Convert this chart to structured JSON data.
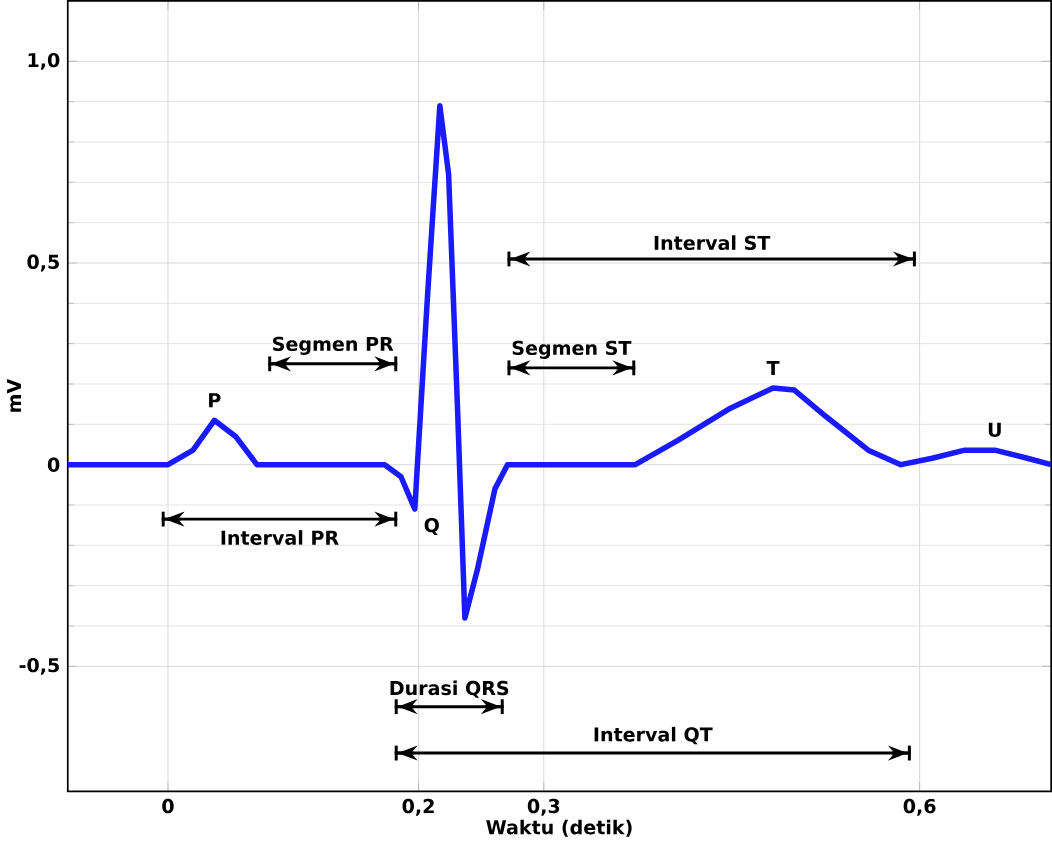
{
  "chart_data": {
    "type": "line",
    "xlabel": "Waktu (detik)",
    "ylabel": "mV",
    "xlim": [
      -0.08,
      0.705
    ],
    "ylim": [
      -0.81,
      1.15
    ],
    "xticks": [
      {
        "value": 0,
        "label": "0"
      },
      {
        "value": 0.2,
        "label": "0,2"
      },
      {
        "value": 0.3,
        "label": "0,3"
      },
      {
        "value": 0.6,
        "label": "0,6"
      }
    ],
    "yticks": [
      {
        "value": -0.5,
        "label": "-0,5"
      },
      {
        "value": 0,
        "label": "0"
      },
      {
        "value": 0.5,
        "label": "0,5"
      },
      {
        "value": 1,
        "label": "1,0"
      }
    ],
    "grid": true,
    "marker": "none",
    "line_style": "solid",
    "series": [
      {
        "color": "#1a1aff",
        "x": [
          -0.08,
          0,
          0.02,
          0.037,
          0.054,
          0.071,
          0.173,
          0.186,
          0.197,
          0.207,
          0.217,
          0.224,
          0.231,
          0.237,
          0.247,
          0.261,
          0.271,
          0.373,
          0.407,
          0.449,
          0.483,
          0.5,
          0.525,
          0.559,
          0.585,
          0.61,
          0.636,
          0.66,
          0.686,
          0.705
        ],
        "values": [
          0,
          0,
          0.036,
          0.11,
          0.07,
          0,
          0,
          -0.03,
          -0.11,
          0.41,
          0.89,
          0.72,
          0.15,
          -0.38,
          -0.26,
          -0.06,
          0,
          0,
          0.06,
          0.14,
          0.19,
          0.185,
          0.12,
          0.036,
          0,
          0.016,
          0.036,
          0.036,
          0.016,
          0
        ]
      },
      {
        "name": "Interval ST",
        "color": "#000000",
        "x": [
          0.271,
          0.597
        ],
        "values": [
          0.51,
          0.51
        ]
      },
      {
        "name": "Segmen PR",
        "color": "#000000",
        "x": [
          0.08,
          0.183
        ],
        "values": [
          0.25,
          0.25
        ]
      },
      {
        "name": "Segmen ST",
        "color": "#000000",
        "x": [
          0.271,
          0.373
        ],
        "values": [
          0.24,
          0.24
        ]
      },
      {
        "name": "Interval PR",
        "color": "#000000",
        "x": [
          -0.005,
          0.183
        ],
        "values": [
          -0.135,
          -0.135
        ]
      },
      {
        "name": "Durasi QRS",
        "color": "#000000",
        "x": [
          0.181,
          0.268
        ],
        "values": [
          -0.6,
          -0.6
        ]
      },
      {
        "name": "Interval QT",
        "color": "#000000",
        "x": [
          0.181,
          0.593
        ],
        "values": [
          -0.715,
          -0.715
        ]
      }
    ],
    "annotations": [
      {
        "text": "P",
        "x": 0.037,
        "y": 0.11
      },
      {
        "text": "Q",
        "x": 0.197,
        "y": -0.11
      },
      {
        "text": "T",
        "x": 0.483,
        "y": 0.19
      },
      {
        "text": "U",
        "x": 0.66,
        "y": 0.036
      }
    ]
  }
}
